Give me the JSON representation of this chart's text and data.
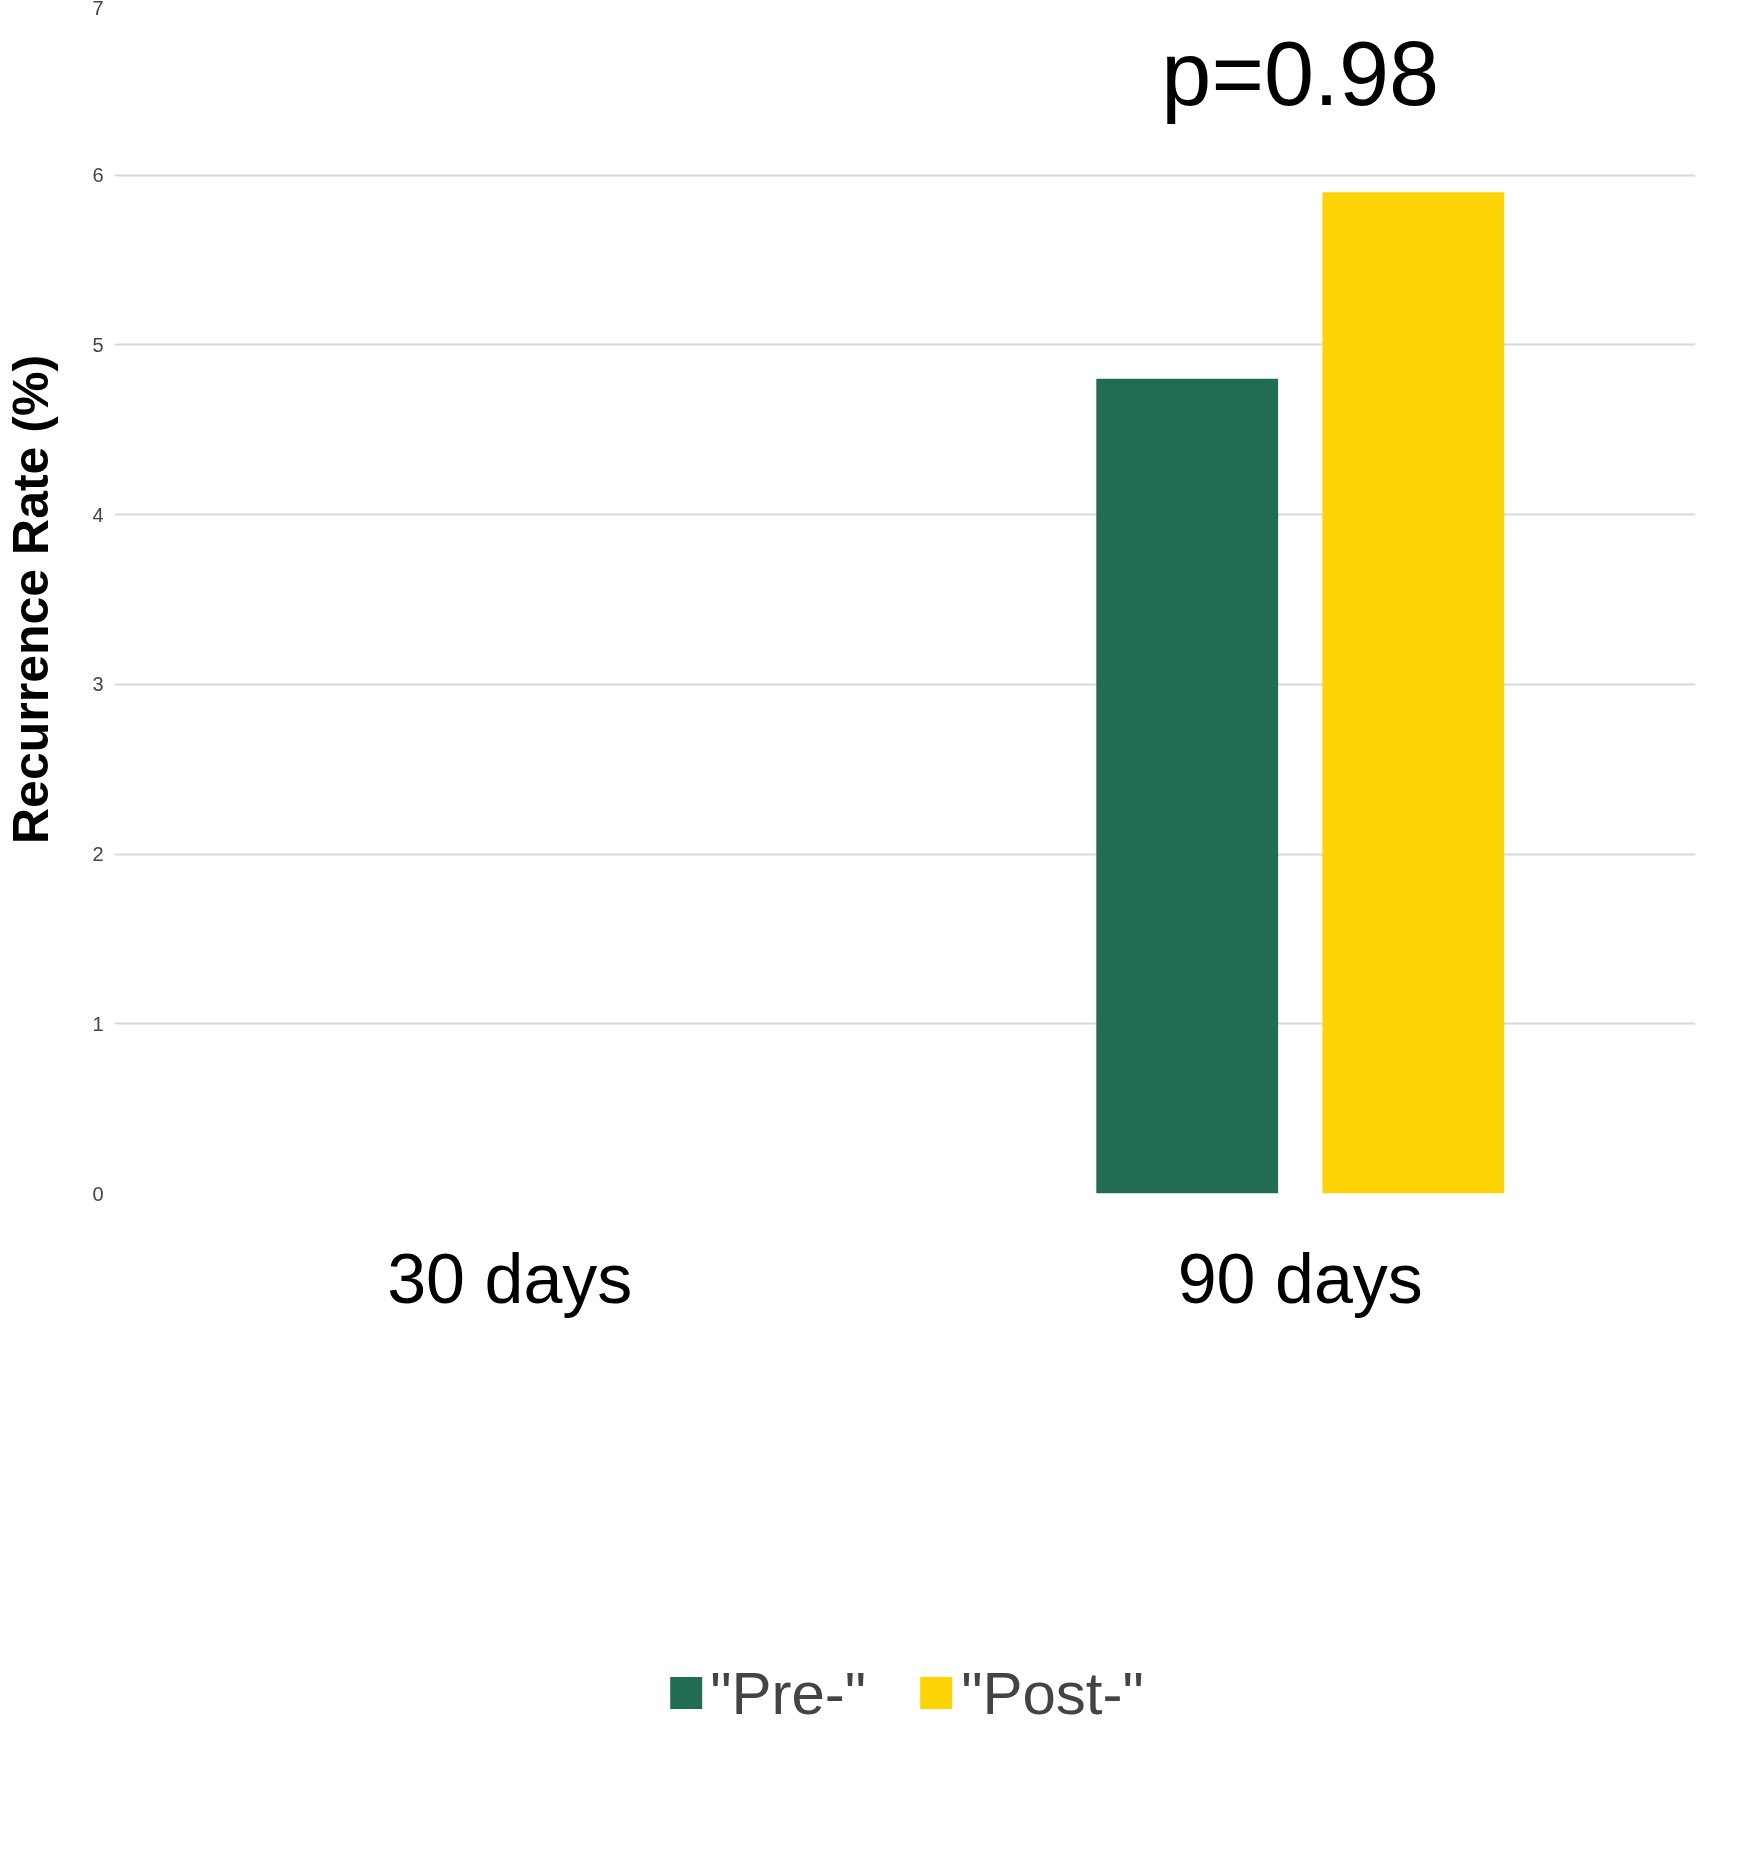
{
  "chart_data": {
    "type": "bar",
    "ylabel": "Recurrence Rate (%)",
    "categories": [
      "30 days",
      "90 days"
    ],
    "series": [
      {
        "name": "\"Pre-\"",
        "color": "#216c52",
        "values": [
          0,
          4.8
        ]
      },
      {
        "name": "\"Post-\"",
        "color": "#fed406",
        "values": [
          0,
          5.9
        ]
      }
    ],
    "ylim": [
      0,
      7
    ],
    "yticks": [
      0,
      1,
      2,
      3,
      4,
      5,
      6,
      7
    ],
    "grid": "y",
    "legend": "bottom",
    "annotations": [
      "p=0.98"
    ]
  }
}
